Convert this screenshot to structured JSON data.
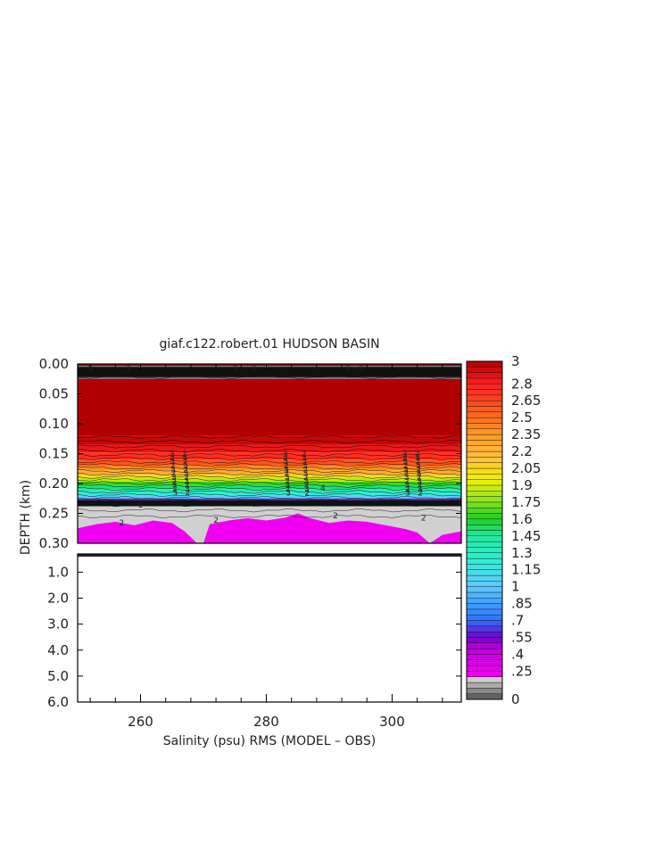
{
  "chart_data": {
    "type": "heatmap",
    "title": "giaf.c122.robert.01 HUDSON BASIN",
    "xlabel": "Salinity (psu) RMS (MODEL – OBS)",
    "ylabel": "DEPTH (km)",
    "x_ticks": [
      "260",
      "280",
      "300"
    ],
    "x_tick_values": [
      260,
      280,
      300
    ],
    "xlim": [
      250,
      311
    ],
    "upper_panel": {
      "ylim": [
        0.0,
        0.3
      ],
      "y_ticks": [
        "0.00",
        "0.05",
        "0.10",
        "0.15",
        "0.20",
        "0.25",
        "0.30"
      ],
      "y_tick_values": [
        0.0,
        0.05,
        0.1,
        0.15,
        0.2,
        0.25,
        0.3
      ]
    },
    "lower_panel": {
      "ylim": [
        0.3,
        6.0
      ],
      "y_ticks": [
        "1.0",
        "2.0",
        "3.0",
        "4.0",
        "5.0",
        "6.0"
      ],
      "y_tick_values": [
        1.0,
        2.0,
        3.0,
        4.0,
        5.0,
        6.0
      ]
    },
    "colorbar": {
      "range": [
        0,
        3
      ],
      "labels": [
        "3",
        "2.8",
        "2.65",
        "2.5",
        "2.35",
        "2.2",
        "2.05",
        "1.9",
        "1.75",
        "1.6",
        "1.45",
        "1.3",
        "1.15",
        "1",
        ".85",
        ".7",
        ".55",
        ".4",
        ".25",
        "0"
      ],
      "label_values": [
        3,
        2.8,
        2.65,
        2.5,
        2.35,
        2.2,
        2.05,
        1.9,
        1.75,
        1.6,
        1.45,
        1.3,
        1.15,
        1,
        0.85,
        0.7,
        0.55,
        0.4,
        0.25,
        0
      ]
    },
    "contour_labels": [
      "3",
      "2",
      "1",
      "4",
      "2"
    ],
    "colors": {
      "max": "#b00000",
      "red": "#ff2020",
      "orange": "#ff9a20",
      "yellow": "#f0f000",
      "green": "#20d020",
      "cyan": "#30f0d0",
      "blue": "#3070ff",
      "purple": "#7000c8",
      "magenta": "#f000f0",
      "gray": "#c8c8c8",
      "dark": "#505050"
    }
  }
}
